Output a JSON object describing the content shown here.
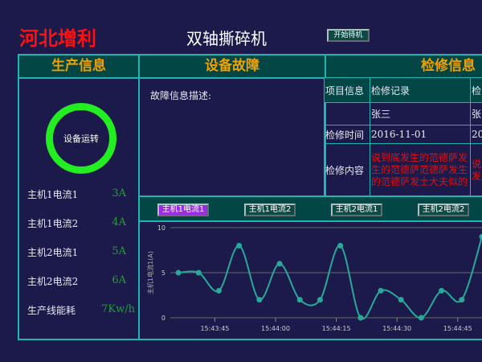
{
  "header": {
    "brand": "河北增利",
    "title": "双轴撕碎机",
    "start_button": "开始待机"
  },
  "sections": {
    "production": "生产信息",
    "fault": "设备故障",
    "maintenance": "检修信息"
  },
  "production": {
    "status": "设备运转",
    "status_color": "#22ee22",
    "items": [
      {
        "label": "主机1电流1",
        "value": "3A"
      },
      {
        "label": "主机1电流2",
        "value": "4A"
      },
      {
        "label": "主机2电流1",
        "value": "5A"
      },
      {
        "label": "主机2电流2",
        "value": "6A"
      },
      {
        "label": "生产线能耗",
        "value": "7Kw/h"
      }
    ]
  },
  "fault": {
    "description_label": "故障信息描述:"
  },
  "maintenance": {
    "header": [
      "项目信息",
      "检修记录",
      "检"
    ],
    "rows": [
      {
        "label": "",
        "cells": [
          "张三",
          "张"
        ]
      },
      {
        "label": "检修时间",
        "cells": [
          "2016-11-01",
          "20"
        ]
      },
      {
        "label": "检修内容",
        "cells": [
          "说到底发生的范德萨发生的范德萨范德萨发生的范德萨发士大夫似的",
          "说发发夫"
        ]
      }
    ]
  },
  "tabs": [
    {
      "label": "主机1电流1",
      "active": true
    },
    {
      "label": "主机1电流2",
      "active": false
    },
    {
      "label": "主机2电流1",
      "active": false
    },
    {
      "label": "主机2电流2",
      "active": false
    }
  ],
  "chart_data": {
    "type": "line",
    "ylabel": "主机1电流1(A)",
    "ylim": [
      0,
      10
    ],
    "yticks": [
      "0",
      "5",
      "10"
    ],
    "xlim": [
      "15:43:34",
      "15:44:51"
    ],
    "xticks": [
      "15:43:45",
      "15:44:00",
      "15:44:15",
      "15:44:30",
      "15:44:45"
    ],
    "grid": true,
    "color": "#2aa89a",
    "x": [
      "15:43:36",
      "15:43:41",
      "15:43:46",
      "15:43:51",
      "15:43:56",
      "15:44:01",
      "15:44:06",
      "15:44:11",
      "15:44:16",
      "15:44:21",
      "15:44:26",
      "15:44:31",
      "15:44:36",
      "15:44:41",
      "15:44:46",
      "15:44:51"
    ],
    "values": [
      5,
      5,
      3,
      8,
      2,
      6,
      2,
      2,
      8,
      0,
      3,
      2,
      0,
      3,
      2,
      9
    ]
  }
}
